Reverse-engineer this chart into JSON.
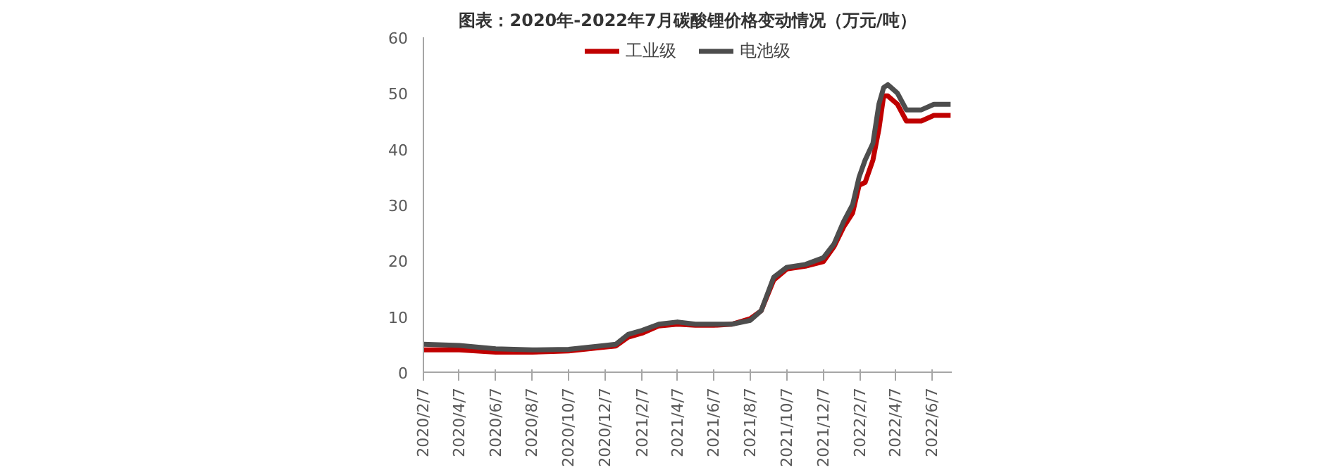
{
  "chart_data": {
    "type": "line",
    "title": "图表：2020年-2022年7月碳酸锂价格变动情况（万元/吨）",
    "x": [
      "2020-02-07",
      "2020-04-07",
      "2020-06-07",
      "2020-08-07",
      "2020-10-07",
      "2020-12-07",
      "2020-12-25",
      "2021-01-15",
      "2021-02-07",
      "2021-03-07",
      "2021-04-07",
      "2021-05-07",
      "2021-06-07",
      "2021-07-07",
      "2021-08-07",
      "2021-08-25",
      "2021-09-15",
      "2021-10-07",
      "2021-11-07",
      "2021-12-07",
      "2021-12-25",
      "2022-01-10",
      "2022-01-25",
      "2022-02-05",
      "2022-02-15",
      "2022-02-28",
      "2022-03-10",
      "2022-03-18",
      "2022-03-25",
      "2022-04-10",
      "2022-04-25",
      "2022-05-20",
      "2022-06-10",
      "2022-07-08"
    ],
    "series": [
      {
        "name": "工业级",
        "color": "#c00000",
        "values": [
          4.0,
          4.0,
          3.6,
          3.6,
          3.8,
          4.5,
          4.7,
          6.3,
          7.0,
          8.3,
          8.6,
          8.4,
          8.4,
          8.6,
          9.6,
          11,
          16.5,
          18.5,
          19,
          19.8,
          22.5,
          26,
          28.5,
          33.5,
          34,
          38,
          43.5,
          49.5,
          49.5,
          48,
          45,
          45,
          46,
          46
        ]
      },
      {
        "name": "电池级",
        "color": "#4d4d4d",
        "values": [
          5.0,
          4.8,
          4.2,
          4.0,
          4.1,
          4.8,
          5.0,
          6.8,
          7.5,
          8.6,
          9.0,
          8.6,
          8.6,
          8.6,
          9.3,
          11,
          17,
          18.8,
          19.3,
          20.5,
          23,
          27,
          30,
          35,
          38,
          41,
          48,
          51,
          51.5,
          50,
          47,
          47,
          48,
          48
        ]
      }
    ],
    "xlim": [
      "2020-02-07",
      "2022-07-10"
    ],
    "xticks": [
      {
        "value": "2020-02-07",
        "label": "2020/2/7"
      },
      {
        "value": "2020-04-07",
        "label": "2020/4/7"
      },
      {
        "value": "2020-06-07",
        "label": "2020/6/7"
      },
      {
        "value": "2020-08-07",
        "label": "2020/8/7"
      },
      {
        "value": "2020-10-07",
        "label": "2020/10/7"
      },
      {
        "value": "2020-12-07",
        "label": "2020/12/7"
      },
      {
        "value": "2021-02-07",
        "label": "2021/2/7"
      },
      {
        "value": "2021-04-07",
        "label": "2021/4/7"
      },
      {
        "value": "2021-06-07",
        "label": "2021/6/7"
      },
      {
        "value": "2021-08-07",
        "label": "2021/8/7"
      },
      {
        "value": "2021-10-07",
        "label": "2021/10/7"
      },
      {
        "value": "2021-12-07",
        "label": "2021/12/7"
      },
      {
        "value": "2022-02-07",
        "label": "2022/2/7"
      },
      {
        "value": "2022-04-07",
        "label": "2022/4/7"
      },
      {
        "value": "2022-06-07",
        "label": "2022/6/7"
      }
    ],
    "ylim": [
      0,
      60
    ],
    "yticks": [
      0,
      10,
      20,
      30,
      40,
      50,
      60
    ],
    "legend": "top",
    "grid": false,
    "line_style": "solid",
    "marker": "none"
  }
}
